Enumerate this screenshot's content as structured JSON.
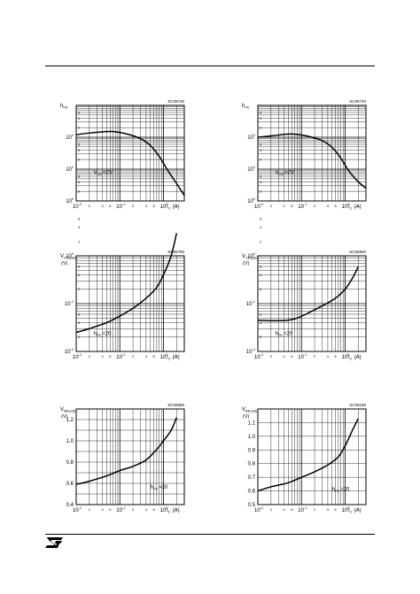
{
  "logo": "st-logo",
  "chart_data": [
    {
      "type": "line",
      "code": "SC06730",
      "ylabel_main": "h",
      "ylabel_sub": "FE",
      "ylabel_unit": "",
      "xlabel_main": "I",
      "xlabel_sub": "C",
      "xlabel_unit": "(A)",
      "x_scale": "log",
      "xlim": [
        0.01,
        3
      ],
      "y_scale": "log",
      "ylim": [
        1,
        1000
      ],
      "x_ticks": [
        {
          "v": 0.01,
          "m": "10",
          "e": "-2"
        },
        {
          "v": 0.1,
          "m": "10",
          "e": "-1"
        },
        {
          "v": 1,
          "m": "10",
          "e": "0"
        }
      ],
      "y_ticks": [
        {
          "v": 1,
          "m": "10",
          "e": "0"
        },
        {
          "v": 10,
          "m": "10",
          "e": "1"
        },
        {
          "v": 100,
          "m": "10",
          "e": "2"
        }
      ],
      "x_minor_labels": [
        {
          "v": 0.02,
          "t": "2"
        },
        {
          "v": 0.04,
          "t": "4"
        },
        {
          "v": 0.06,
          "t": "6"
        },
        {
          "v": 0.2,
          "t": "2"
        },
        {
          "v": 0.4,
          "t": "4"
        },
        {
          "v": 0.6,
          "t": "6"
        },
        {
          "v": 2,
          "t": "2"
        }
      ],
      "y_minor_labels": [
        {
          "v": 2,
          "t": "2"
        },
        {
          "v": 4,
          "t": "4"
        },
        {
          "v": 6,
          "t": "6"
        },
        {
          "v": 20,
          "t": "2"
        },
        {
          "v": 40,
          "t": "4"
        },
        {
          "v": 60,
          "t": "6"
        },
        {
          "v": 200,
          "t": "2"
        },
        {
          "v": 400,
          "t": "4"
        },
        {
          "v": 600,
          "t": "6"
        }
      ],
      "annotation": {
        "main": "V",
        "sub": "CE",
        "rest": "=2V",
        "x": 0.025,
        "y": 7
      },
      "series": [
        {
          "x": [
            0.01,
            0.02,
            0.05,
            0.08,
            0.15,
            0.3,
            0.5,
            0.8,
            1.2,
            2,
            3
          ],
          "y": [
            120,
            135,
            150,
            148,
            125,
            90,
            55,
            25,
            10,
            3.5,
            1.5
          ]
        }
      ]
    },
    {
      "type": "line",
      "code": "SC06740",
      "ylabel_main": "h",
      "ylabel_sub": "FE",
      "ylabel_unit": "",
      "xlabel_main": "I",
      "xlabel_sub": "C",
      "xlabel_unit": "(A)",
      "x_scale": "log",
      "xlim": [
        0.01,
        3
      ],
      "y_scale": "log",
      "ylim": [
        1,
        1000
      ],
      "x_ticks": [
        {
          "v": 0.01,
          "m": "10",
          "e": "-2"
        },
        {
          "v": 0.1,
          "m": "10",
          "e": "-1"
        },
        {
          "v": 1,
          "m": "10",
          "e": "0"
        }
      ],
      "y_ticks": [
        {
          "v": 1,
          "m": "10",
          "e": "0"
        },
        {
          "v": 10,
          "m": "10",
          "e": "1"
        },
        {
          "v": 100,
          "m": "10",
          "e": "2"
        }
      ],
      "x_minor_labels": [
        {
          "v": 0.02,
          "t": "2"
        },
        {
          "v": 0.04,
          "t": "4"
        },
        {
          "v": 0.06,
          "t": "6"
        },
        {
          "v": 0.2,
          "t": "2"
        },
        {
          "v": 0.4,
          "t": "4"
        },
        {
          "v": 0.6,
          "t": "6"
        },
        {
          "v": 2,
          "t": "2"
        }
      ],
      "y_minor_labels": [
        {
          "v": 2,
          "t": "2"
        },
        {
          "v": 4,
          "t": "4"
        },
        {
          "v": 6,
          "t": "6"
        },
        {
          "v": 20,
          "t": "2"
        },
        {
          "v": 40,
          "t": "4"
        },
        {
          "v": 60,
          "t": "6"
        },
        {
          "v": 200,
          "t": "2"
        },
        {
          "v": 400,
          "t": "4"
        },
        {
          "v": 600,
          "t": "6"
        }
      ],
      "annotation": {
        "main": "V",
        "sub": "CE",
        "rest": "=2V",
        "x": 0.025,
        "y": 7
      },
      "series": [
        {
          "x": [
            0.01,
            0.02,
            0.05,
            0.08,
            0.15,
            0.3,
            0.5,
            0.8,
            1.2,
            2,
            3
          ],
          "y": [
            100,
            110,
            125,
            122,
            105,
            78,
            48,
            22,
            9,
            4,
            2.5
          ]
        }
      ]
    },
    {
      "type": "line",
      "code": "SC06750",
      "ylabel_main": "V",
      "ylabel_sub": "CE(sat)",
      "ylabel_unit": "(V)",
      "xlabel_main": "I",
      "xlabel_sub": "C",
      "xlabel_unit": "(A)",
      "x_scale": "log",
      "xlim": [
        0.01,
        3
      ],
      "y_scale": "log",
      "ylim": [
        0.01,
        1
      ],
      "x_ticks": [
        {
          "v": 0.01,
          "m": "10",
          "e": "-2"
        },
        {
          "v": 0.1,
          "m": "10",
          "e": "-1"
        },
        {
          "v": 1,
          "m": "10",
          "e": "0"
        }
      ],
      "y_ticks": [
        {
          "v": 0.01,
          "m": "10",
          "e": "-2"
        },
        {
          "v": 0.1,
          "m": "10",
          "e": "-1"
        },
        {
          "v": 1,
          "m": "10",
          "e": "0"
        }
      ],
      "x_minor_labels": [
        {
          "v": 0.02,
          "t": "2"
        },
        {
          "v": 0.04,
          "t": "4"
        },
        {
          "v": 0.06,
          "t": "6"
        },
        {
          "v": 0.2,
          "t": "2"
        },
        {
          "v": 0.4,
          "t": "4"
        },
        {
          "v": 0.6,
          "t": "6"
        },
        {
          "v": 2,
          "t": "2"
        }
      ],
      "y_minor_labels": [
        {
          "v": 0.02,
          "t": "2"
        },
        {
          "v": 0.04,
          "t": "4"
        },
        {
          "v": 0.06,
          "t": "6"
        },
        {
          "v": 0.2,
          "t": "2"
        },
        {
          "v": 0.4,
          "t": "4"
        },
        {
          "v": 0.6,
          "t": "6"
        },
        {
          "v": 2,
          "t": "2"
        },
        {
          "v": 4,
          "t": "4"
        },
        {
          "v": 6,
          "t": "6"
        }
      ],
      "annotation": {
        "main": "h",
        "sub": "FE",
        "rest": "=20",
        "x": 0.025,
        "y": 0.022
      },
      "series": [
        {
          "x": [
            0.01,
            0.02,
            0.05,
            0.1,
            0.2,
            0.4,
            0.7,
            1,
            1.5,
            2
          ],
          "y": [
            0.025,
            0.03,
            0.04,
            0.055,
            0.08,
            0.13,
            0.22,
            0.4,
            1,
            3
          ]
        }
      ]
    },
    {
      "type": "line",
      "code": "SC06800",
      "ylabel_main": "V",
      "ylabel_sub": "CE(sat)",
      "ylabel_unit": "(V)",
      "xlabel_main": "I",
      "xlabel_sub": "C",
      "xlabel_unit": "(A)",
      "x_scale": "log",
      "xlim": [
        0.01,
        3
      ],
      "y_scale": "log",
      "ylim": [
        0.01,
        1
      ],
      "x_ticks": [
        {
          "v": 0.01,
          "m": "10",
          "e": "-2"
        },
        {
          "v": 0.1,
          "m": "10",
          "e": "-1"
        },
        {
          "v": 1,
          "m": "10",
          "e": "0"
        }
      ],
      "y_ticks": [
        {
          "v": 0.01,
          "m": "10",
          "e": "-2"
        },
        {
          "v": 0.1,
          "m": "10",
          "e": "-1"
        },
        {
          "v": 1,
          "m": "10",
          "e": "0"
        }
      ],
      "x_minor_labels": [
        {
          "v": 0.02,
          "t": "2"
        },
        {
          "v": 0.04,
          "t": "4"
        },
        {
          "v": 0.06,
          "t": "6"
        },
        {
          "v": 0.2,
          "t": "2"
        },
        {
          "v": 0.4,
          "t": "4"
        },
        {
          "v": 0.6,
          "t": "6"
        },
        {
          "v": 2,
          "t": "2"
        }
      ],
      "y_minor_labels": [
        {
          "v": 0.02,
          "t": "2"
        },
        {
          "v": 0.04,
          "t": "4"
        },
        {
          "v": 0.06,
          "t": "6"
        },
        {
          "v": 0.2,
          "t": "2"
        },
        {
          "v": 0.4,
          "t": "4"
        },
        {
          "v": 0.6,
          "t": "6"
        },
        {
          "v": 2,
          "t": "2"
        },
        {
          "v": 4,
          "t": "4"
        },
        {
          "v": 6,
          "t": "6"
        }
      ],
      "annotation": {
        "main": "h",
        "sub": "FE",
        "rest": "=20",
        "x": 0.025,
        "y": 0.022
      },
      "series": [
        {
          "x": [
            0.01,
            0.02,
            0.05,
            0.08,
            0.15,
            0.3,
            0.6,
            1,
            1.5,
            2
          ],
          "y": [
            0.045,
            0.044,
            0.045,
            0.05,
            0.065,
            0.09,
            0.13,
            0.2,
            0.35,
            0.6
          ]
        }
      ]
    },
    {
      "type": "line",
      "code": "SC06850",
      "ylabel_main": "V",
      "ylabel_sub": "BE(sat)",
      "ylabel_unit": "(V)",
      "xlabel_main": "I",
      "xlabel_sub": "C",
      "xlabel_unit": "(A)",
      "x_scale": "log",
      "xlim": [
        0.01,
        3
      ],
      "y_scale": "linear",
      "ylim": [
        0.4,
        1.3
      ],
      "x_ticks": [
        {
          "v": 0.01,
          "m": "10",
          "e": "-2"
        },
        {
          "v": 0.1,
          "m": "10",
          "e": "-1"
        },
        {
          "v": 1,
          "m": "10",
          "e": "0"
        }
      ],
      "y_ticks": [
        {
          "v": 0.4,
          "m": "0.4",
          "e": ""
        },
        {
          "v": 0.6,
          "m": "0.6",
          "e": ""
        },
        {
          "v": 0.8,
          "m": "0.8",
          "e": ""
        },
        {
          "v": 1.0,
          "m": "1.0",
          "e": ""
        },
        {
          "v": 1.2,
          "m": "1.2",
          "e": ""
        }
      ],
      "x_minor_labels": [
        {
          "v": 0.02,
          "t": "2"
        },
        {
          "v": 0.04,
          "t": "4"
        },
        {
          "v": 0.06,
          "t": "6"
        },
        {
          "v": 0.2,
          "t": "2"
        },
        {
          "v": 0.4,
          "t": "4"
        },
        {
          "v": 0.6,
          "t": "6"
        },
        {
          "v": 2,
          "t": "2"
        }
      ],
      "y_minor_labels": [],
      "annotation": {
        "main": "h",
        "sub": "FE",
        "rest": "=20",
        "x": 0.5,
        "y": 0.55
      },
      "series": [
        {
          "x": [
            0.01,
            0.02,
            0.05,
            0.1,
            0.2,
            0.4,
            0.7,
            1,
            1.5,
            2
          ],
          "y": [
            0.59,
            0.62,
            0.67,
            0.72,
            0.76,
            0.82,
            0.92,
            1.0,
            1.1,
            1.22
          ]
        }
      ]
    },
    {
      "type": "line",
      "code": "SC06180",
      "ylabel_main": "V",
      "ylabel_sub": "BE(sat)",
      "ylabel_unit": "(V)",
      "xlabel_main": "I",
      "xlabel_sub": "C",
      "xlabel_unit": "(A)",
      "x_scale": "log",
      "xlim": [
        0.01,
        3
      ],
      "y_scale": "linear",
      "ylim": [
        0.5,
        1.2
      ],
      "x_ticks": [
        {
          "v": 0.01,
          "m": "10",
          "e": "-2"
        },
        {
          "v": 0.1,
          "m": "10",
          "e": "-1"
        },
        {
          "v": 1,
          "m": "10",
          "e": "0"
        }
      ],
      "y_ticks": [
        {
          "v": 0.5,
          "m": "0.5",
          "e": ""
        },
        {
          "v": 0.6,
          "m": "0.6",
          "e": ""
        },
        {
          "v": 0.7,
          "m": "0.7",
          "e": ""
        },
        {
          "v": 0.8,
          "m": "0.8",
          "e": ""
        },
        {
          "v": 0.9,
          "m": "0.9",
          "e": ""
        },
        {
          "v": 1.0,
          "m": "1.0",
          "e": ""
        },
        {
          "v": 1.1,
          "m": "1.1",
          "e": ""
        }
      ],
      "x_minor_labels": [
        {
          "v": 0.02,
          "t": "2"
        },
        {
          "v": 0.04,
          "t": "4"
        },
        {
          "v": 0.06,
          "t": "6"
        },
        {
          "v": 0.2,
          "t": "2"
        },
        {
          "v": 0.4,
          "t": "4"
        },
        {
          "v": 0.6,
          "t": "6"
        },
        {
          "v": 2,
          "t": "2"
        }
      ],
      "y_minor_labels": [],
      "annotation": {
        "main": "h",
        "sub": "FE",
        "rest": "=20",
        "x": 0.5,
        "y": 0.6
      },
      "series": [
        {
          "x": [
            0.01,
            0.02,
            0.05,
            0.1,
            0.2,
            0.4,
            0.7,
            1,
            1.5,
            2
          ],
          "y": [
            0.6,
            0.63,
            0.66,
            0.7,
            0.74,
            0.79,
            0.85,
            0.93,
            1.05,
            1.13
          ]
        }
      ]
    }
  ]
}
